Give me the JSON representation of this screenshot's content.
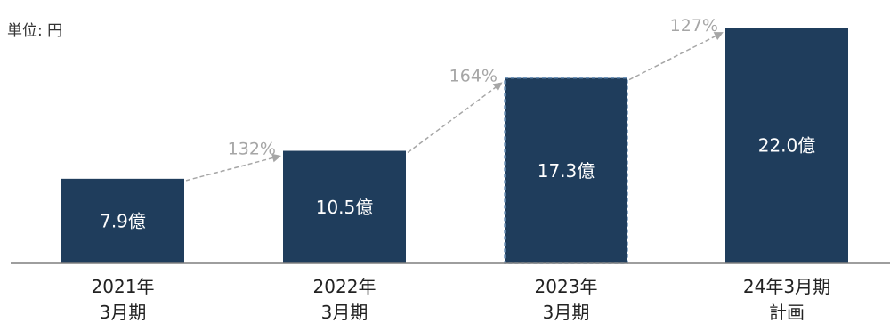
{
  "unit_label": "単位: 円",
  "colors": {
    "bar": "#1f3d5c",
    "bar_dashed_border": "#6f93b8",
    "arrow": "#a6a6a6",
    "growth_text": "#a6a6a6",
    "value_text": "#ffffff",
    "axis": "#7f7f7f",
    "category_text": "#222222"
  },
  "chart_data": {
    "type": "bar",
    "categories": [
      [
        "2021年",
        "3月期"
      ],
      [
        "2022年",
        "3月期"
      ],
      [
        "2023年",
        "3月期"
      ],
      [
        "24年3月期",
        "計画"
      ]
    ],
    "values": [
      7.9,
      10.5,
      17.3,
      22.0
    ],
    "value_labels": [
      "7.9億",
      "10.5億",
      "17.3億",
      "22.0億"
    ],
    "growth_labels": [
      "132%",
      "164%",
      "127%"
    ],
    "highlighted_index": 2,
    "ylim": [
      0,
      22.0
    ]
  }
}
